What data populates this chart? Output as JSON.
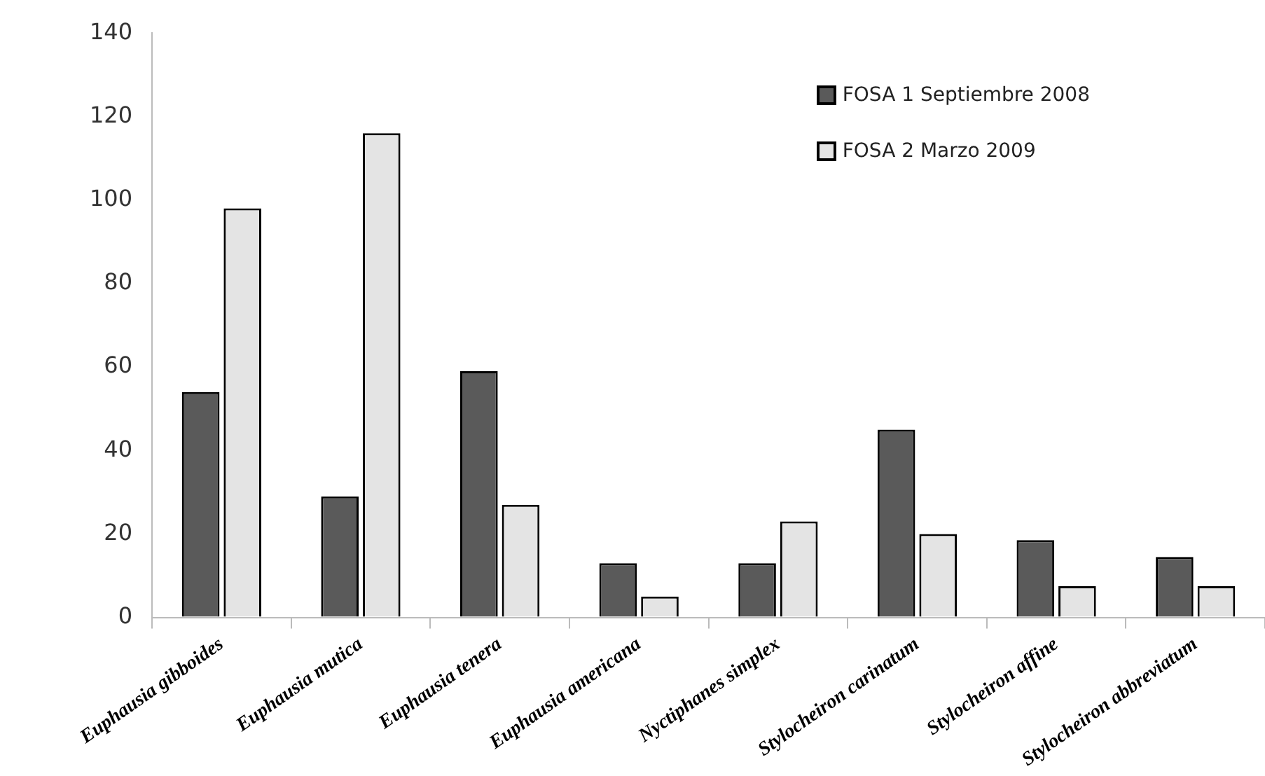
{
  "chart_data": {
    "type": "bar",
    "categories": [
      "Euphausia gibboides",
      "Euphausia mutica",
      "Euphausia tenera",
      "Euphausia americana",
      "Nyctiphanes simplex",
      "Stylocheiron carinatum",
      "Stylocheiron affine",
      "Stylocheiron abbreviatum"
    ],
    "series": [
      {
        "name": "FOSA 1 Septiembre 2008",
        "color": "#5a5a5a",
        "values": [
          54,
          29,
          59,
          13,
          13,
          45,
          18.5,
          14.5
        ]
      },
      {
        "name": "FOSA 2 Marzo 2009",
        "color": "#e4e4e4",
        "values": [
          98,
          116,
          27,
          5,
          23,
          20,
          7.5,
          7.5
        ]
      }
    ],
    "ylim": [
      0,
      140
    ],
    "yticks": [
      0,
      20,
      40,
      60,
      80,
      100,
      120,
      140
    ],
    "grid": false,
    "legend": "top right"
  }
}
